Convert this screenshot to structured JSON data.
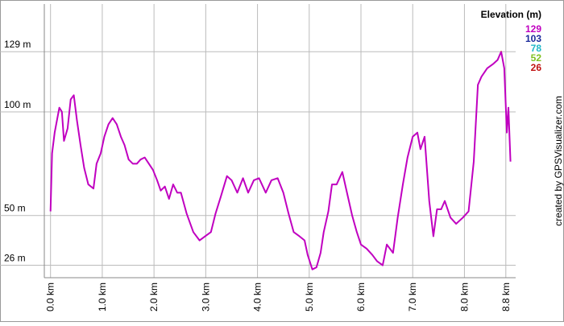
{
  "chart_data": {
    "type": "line",
    "legend_title": "Elevation (m)",
    "color_scale": [
      {
        "value": 129,
        "color": "#c000c0"
      },
      {
        "value": 103,
        "color": "#1a2a9a"
      },
      {
        "value": 78,
        "color": "#20b8c8"
      },
      {
        "value": 52,
        "color": "#80c020"
      },
      {
        "value": 26,
        "color": "#c01010"
      }
    ],
    "credit": "created by GPSVisualizer.com",
    "xlim": [
      -0.12,
      8.99
    ],
    "ylim": [
      20,
      152
    ],
    "xticks": [
      {
        "value": 0,
        "label": "0.0 km"
      },
      {
        "value": 1,
        "label": "1.0 km"
      },
      {
        "value": 2,
        "label": "2.0 km"
      },
      {
        "value": 3,
        "label": "3.0 km"
      },
      {
        "value": 4,
        "label": "4.0 km"
      },
      {
        "value": 5,
        "label": "5.0 km"
      },
      {
        "value": 6,
        "label": "6.0 km"
      },
      {
        "value": 7,
        "label": "7.0 km"
      },
      {
        "value": 8,
        "label": "8.0 km"
      },
      {
        "value": 8.8,
        "label": "8.8 km"
      }
    ],
    "yticks": [
      {
        "value": 129,
        "label": "129 m"
      },
      {
        "value": 100,
        "label": "100 m"
      },
      {
        "value": 50,
        "label": "50 m"
      },
      {
        "value": 26,
        "label": "26 m"
      }
    ],
    "grid": true,
    "x": [
      0,
      0.03,
      0.08,
      0.17,
      0.22,
      0.26,
      0.33,
      0.39,
      0.45,
      0.51,
      0.58,
      0.65,
      0.73,
      0.83,
      0.89,
      0.97,
      1.04,
      1.12,
      1.2,
      1.28,
      1.36,
      1.43,
      1.51,
      1.59,
      1.67,
      1.74,
      1.82,
      1.9,
      1.98,
      2.06,
      2.13,
      2.21,
      2.29,
      2.37,
      2.45,
      2.52,
      2.63,
      2.76,
      2.88,
      2.99,
      3.1,
      3.19,
      3.29,
      3.41,
      3.5,
      3.61,
      3.72,
      3.82,
      3.93,
      4.03,
      4.16,
      4.27,
      4.39,
      4.5,
      4.6,
      4.7,
      4.81,
      4.91,
      4.97,
      5.06,
      5.14,
      5.22,
      5.28,
      5.37,
      5.44,
      5.53,
      5.64,
      5.73,
      5.83,
      5.92,
      6.0,
      6.11,
      6.22,
      6.31,
      6.42,
      6.5,
      6.62,
      6.71,
      6.81,
      6.9,
      7.0,
      7.09,
      7.15,
      7.23,
      7.32,
      7.4,
      7.47,
      7.55,
      7.62,
      7.73,
      7.84,
      7.97,
      8.08,
      8.18,
      8.26,
      8.33,
      8.44,
      8.55,
      8.64,
      8.71,
      8.77,
      8.82,
      8.85,
      8.89
    ],
    "values": [
      52,
      80,
      90,
      102,
      100,
      86,
      92,
      106,
      108,
      96,
      84,
      73,
      65,
      63,
      75,
      80,
      88,
      94,
      97,
      94,
      88,
      84,
      77,
      75,
      75,
      77,
      78,
      75,
      72,
      67,
      62,
      64,
      58,
      65,
      61,
      61,
      51,
      42,
      38,
      40,
      42,
      51,
      59,
      69,
      67,
      61,
      68,
      61,
      67,
      68,
      61,
      67,
      68,
      61,
      51,
      42,
      40,
      38,
      31,
      24,
      25,
      32,
      42,
      52,
      65,
      65,
      71,
      61,
      50,
      42,
      36,
      34,
      31,
      28,
      26,
      36,
      32,
      49,
      65,
      78,
      88,
      90,
      82,
      88,
      57,
      40,
      53,
      53,
      57,
      49,
      46,
      49,
      52,
      76,
      113,
      117,
      121,
      123,
      125,
      129,
      121,
      90,
      102,
      76
    ]
  }
}
